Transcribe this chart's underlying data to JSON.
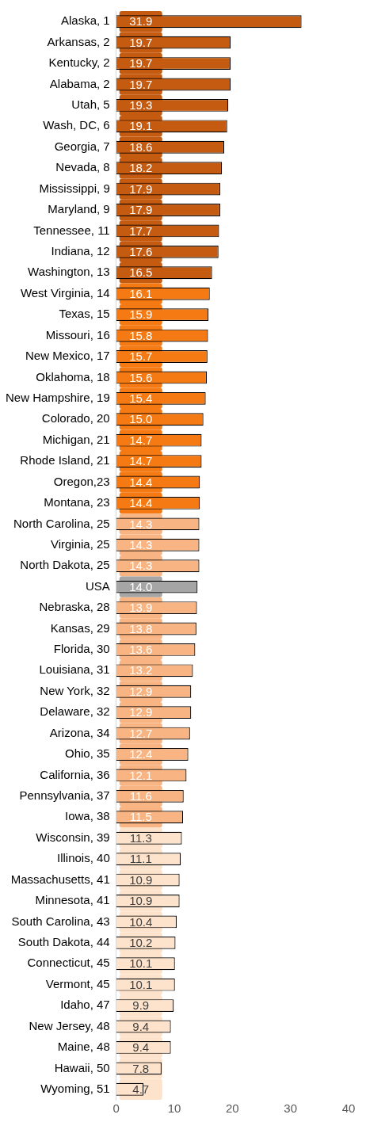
{
  "chart_data": {
    "type": "bar",
    "orientation": "horizontal",
    "categories": [
      "Alaska, 1",
      "Arkansas, 2",
      "Kentucky, 2",
      "Alabama, 2",
      "Utah, 5",
      "Wash, DC, 6",
      "Georgia, 7",
      "Nevada, 8",
      "Mississippi, 9",
      "Maryland, 9",
      "Tennessee, 11",
      "Indiana, 12",
      "Washington, 13",
      "West Virginia, 14",
      "Texas, 15",
      "Missouri, 16",
      "New Mexico, 17",
      "Oklahoma, 18",
      "New Hampshire, 19",
      "Colorado, 20",
      "Michigan, 21",
      "Rhode Island, 21",
      "Oregon,23",
      "Montana, 23",
      "North Carolina, 25",
      "Virginia, 25",
      "North Dakota, 25",
      "USA",
      "Nebraska, 28",
      "Kansas, 29",
      "Florida, 30",
      "Louisiana, 31",
      "New York, 32",
      "Delaware, 32",
      "Arizona, 34",
      "Ohio, 35",
      "California, 36",
      "Pennsylvania, 37",
      "Iowa, 38",
      "Wisconsin, 39",
      "Illinois, 40",
      "Massachusetts, 41",
      "Minnesota, 41",
      "South Carolina, 43",
      "South Dakota, 44",
      "Connecticut, 45",
      "Vermont, 45",
      "Idaho, 47",
      "New Jersey, 48",
      "Maine, 48",
      "Hawaii, 50",
      "Wyoming, 51"
    ],
    "values": [
      31.9,
      19.7,
      19.7,
      19.7,
      19.3,
      19.1,
      18.6,
      18.2,
      17.9,
      17.9,
      17.7,
      17.6,
      16.5,
      16.1,
      15.9,
      15.8,
      15.7,
      15.6,
      15.4,
      15.0,
      14.7,
      14.7,
      14.4,
      14.4,
      14.3,
      14.3,
      14.3,
      14.0,
      13.9,
      13.8,
      13.6,
      13.2,
      12.9,
      12.9,
      12.7,
      12.4,
      12.1,
      11.6,
      11.5,
      11.3,
      11.1,
      10.9,
      10.9,
      10.4,
      10.2,
      10.1,
      10.1,
      9.9,
      9.4,
      9.4,
      7.8,
      4.7
    ],
    "value_labels": [
      "31.9",
      "19.7",
      "19.7",
      "19.7",
      "19.3",
      "19.1",
      "18.6",
      "18.2",
      "17.9",
      "17.9",
      "17.7",
      "17.6",
      "16.5",
      "16.1",
      "15.9",
      "15.8",
      "15.7",
      "15.6",
      "15.4",
      "15.0",
      "14.7",
      "14.7",
      "14.4",
      "14.4",
      "14.3",
      "14.3",
      "14.3",
      "14.0",
      "13.9",
      "13.8",
      "13.6",
      "13.2",
      "12.9",
      "12.9",
      "12.7",
      "12.4",
      "12.1",
      "11.6",
      "11.5",
      "11.3",
      "11.1",
      "10.9",
      "10.9",
      "10.4",
      "10.2",
      "10.1",
      "10.1",
      "9.9",
      "9.4",
      "9.4",
      "7.8",
      "4.7"
    ],
    "colors": [
      "#c55a11",
      "#c55a11",
      "#c55a11",
      "#c55a11",
      "#c55a11",
      "#c55a11",
      "#c55a11",
      "#c55a11",
      "#c55a11",
      "#c55a11",
      "#c55a11",
      "#c55a11",
      "#c55a11",
      "#f57a14",
      "#f57a14",
      "#f57a14",
      "#f57a14",
      "#f57a14",
      "#f57a14",
      "#f57a14",
      "#f57a14",
      "#f57a14",
      "#f57a14",
      "#f57a14",
      "#f8b482",
      "#f8b482",
      "#f8b482",
      "#a5a5a5",
      "#f8b482",
      "#f8b482",
      "#f8b482",
      "#f8b482",
      "#f8b482",
      "#f8b482",
      "#f8b482",
      "#f8b482",
      "#f8b482",
      "#f8b482",
      "#f8b482",
      "#fde3cc",
      "#fde3cc",
      "#fde3cc",
      "#fde3cc",
      "#fde3cc",
      "#fde3cc",
      "#fde3cc",
      "#fde3cc",
      "#fde3cc",
      "#fde3cc",
      "#fde3cc",
      "#fde3cc",
      "#fde3cc"
    ],
    "xlim": [
      0,
      40
    ],
    "xticks": [
      0,
      10,
      20,
      30,
      40
    ],
    "grid": false,
    "legend": false
  }
}
